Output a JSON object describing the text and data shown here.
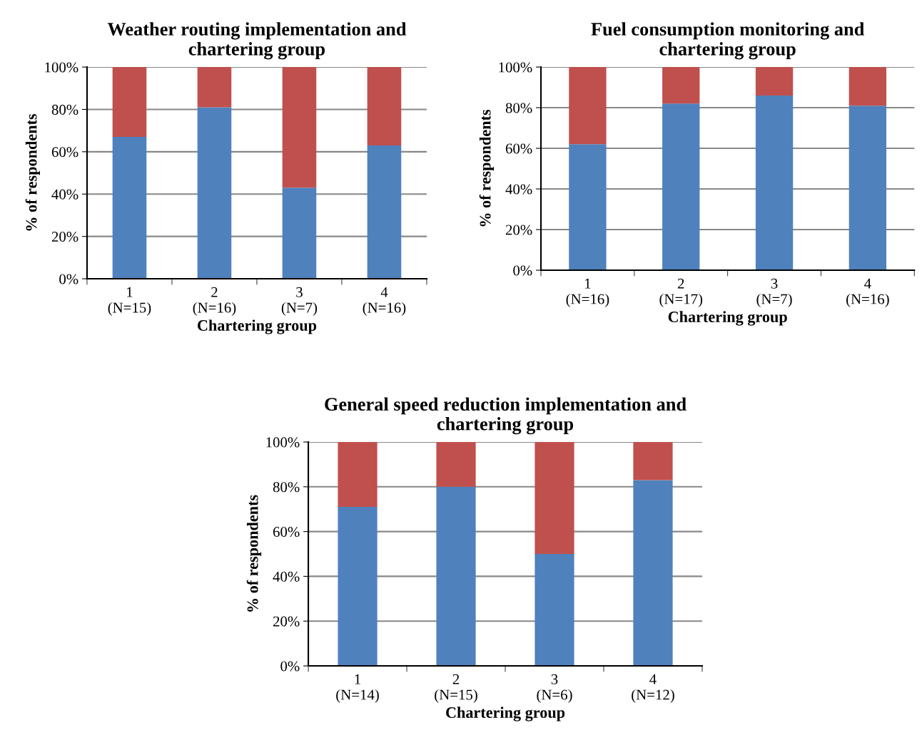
{
  "chart_data": [
    {
      "type": "bar",
      "title": "Weather routing implementation and\nchartering group",
      "xlabel": "Chartering group",
      "ylabel": "% of respondents",
      "stacked": true,
      "grid": "y",
      "categories": [
        "1\n(N=15)",
        "2\n(N=16)",
        "3\n(N=7)",
        "4\n(N=16)"
      ],
      "series": [
        {
          "color": "#4f81bd",
          "values": [
            67,
            81,
            43,
            63
          ]
        },
        {
          "color": "#c0504d",
          "values": [
            33,
            19,
            57,
            37
          ]
        }
      ],
      "ylim": [
        0,
        100
      ],
      "yticks": [
        {
          "value": 0,
          "label": "0%"
        },
        {
          "value": 20,
          "label": "20%"
        },
        {
          "value": 40,
          "label": "40%"
        },
        {
          "value": 60,
          "label": "60%"
        },
        {
          "value": 80,
          "label": "80%"
        },
        {
          "value": 100,
          "label": "100%"
        }
      ]
    },
    {
      "type": "bar",
      "title": "Fuel consumption monitoring and\nchartering group",
      "xlabel": "Chartering group",
      "ylabel": "% of respondents",
      "stacked": true,
      "grid": "y",
      "categories": [
        "1\n(N=16)",
        "2\n(N=17)",
        "3\n(N=7)",
        "4\n(N=16)"
      ],
      "series": [
        {
          "color": "#4f81bd",
          "values": [
            62,
            82,
            86,
            81
          ]
        },
        {
          "color": "#c0504d",
          "values": [
            38,
            18,
            14,
            19
          ]
        }
      ],
      "ylim": [
        0,
        100
      ],
      "yticks": [
        {
          "value": 0,
          "label": "0%"
        },
        {
          "value": 20,
          "label": "20%"
        },
        {
          "value": 40,
          "label": "40%"
        },
        {
          "value": 60,
          "label": "60%"
        },
        {
          "value": 80,
          "label": "80%"
        },
        {
          "value": 100,
          "label": "100%"
        }
      ]
    },
    {
      "type": "bar",
      "title": "General speed reduction implementation and\nchartering group",
      "xlabel": "Chartering group",
      "ylabel": "% of respondents",
      "stacked": true,
      "grid": "y",
      "categories": [
        "1\n(N=14)",
        "2\n(N=15)",
        "3\n(N=6)",
        "4\n(N=12)"
      ],
      "series": [
        {
          "color": "#4f81bd",
          "values": [
            71,
            80,
            50,
            83
          ]
        },
        {
          "color": "#c0504d",
          "values": [
            29,
            20,
            50,
            17
          ]
        }
      ],
      "ylim": [
        0,
        100
      ],
      "yticks": [
        {
          "value": 0,
          "label": "0%"
        },
        {
          "value": 20,
          "label": "20%"
        },
        {
          "value": 40,
          "label": "40%"
        },
        {
          "value": 60,
          "label": "60%"
        },
        {
          "value": 80,
          "label": "80%"
        },
        {
          "value": 100,
          "label": "100%"
        }
      ]
    }
  ]
}
